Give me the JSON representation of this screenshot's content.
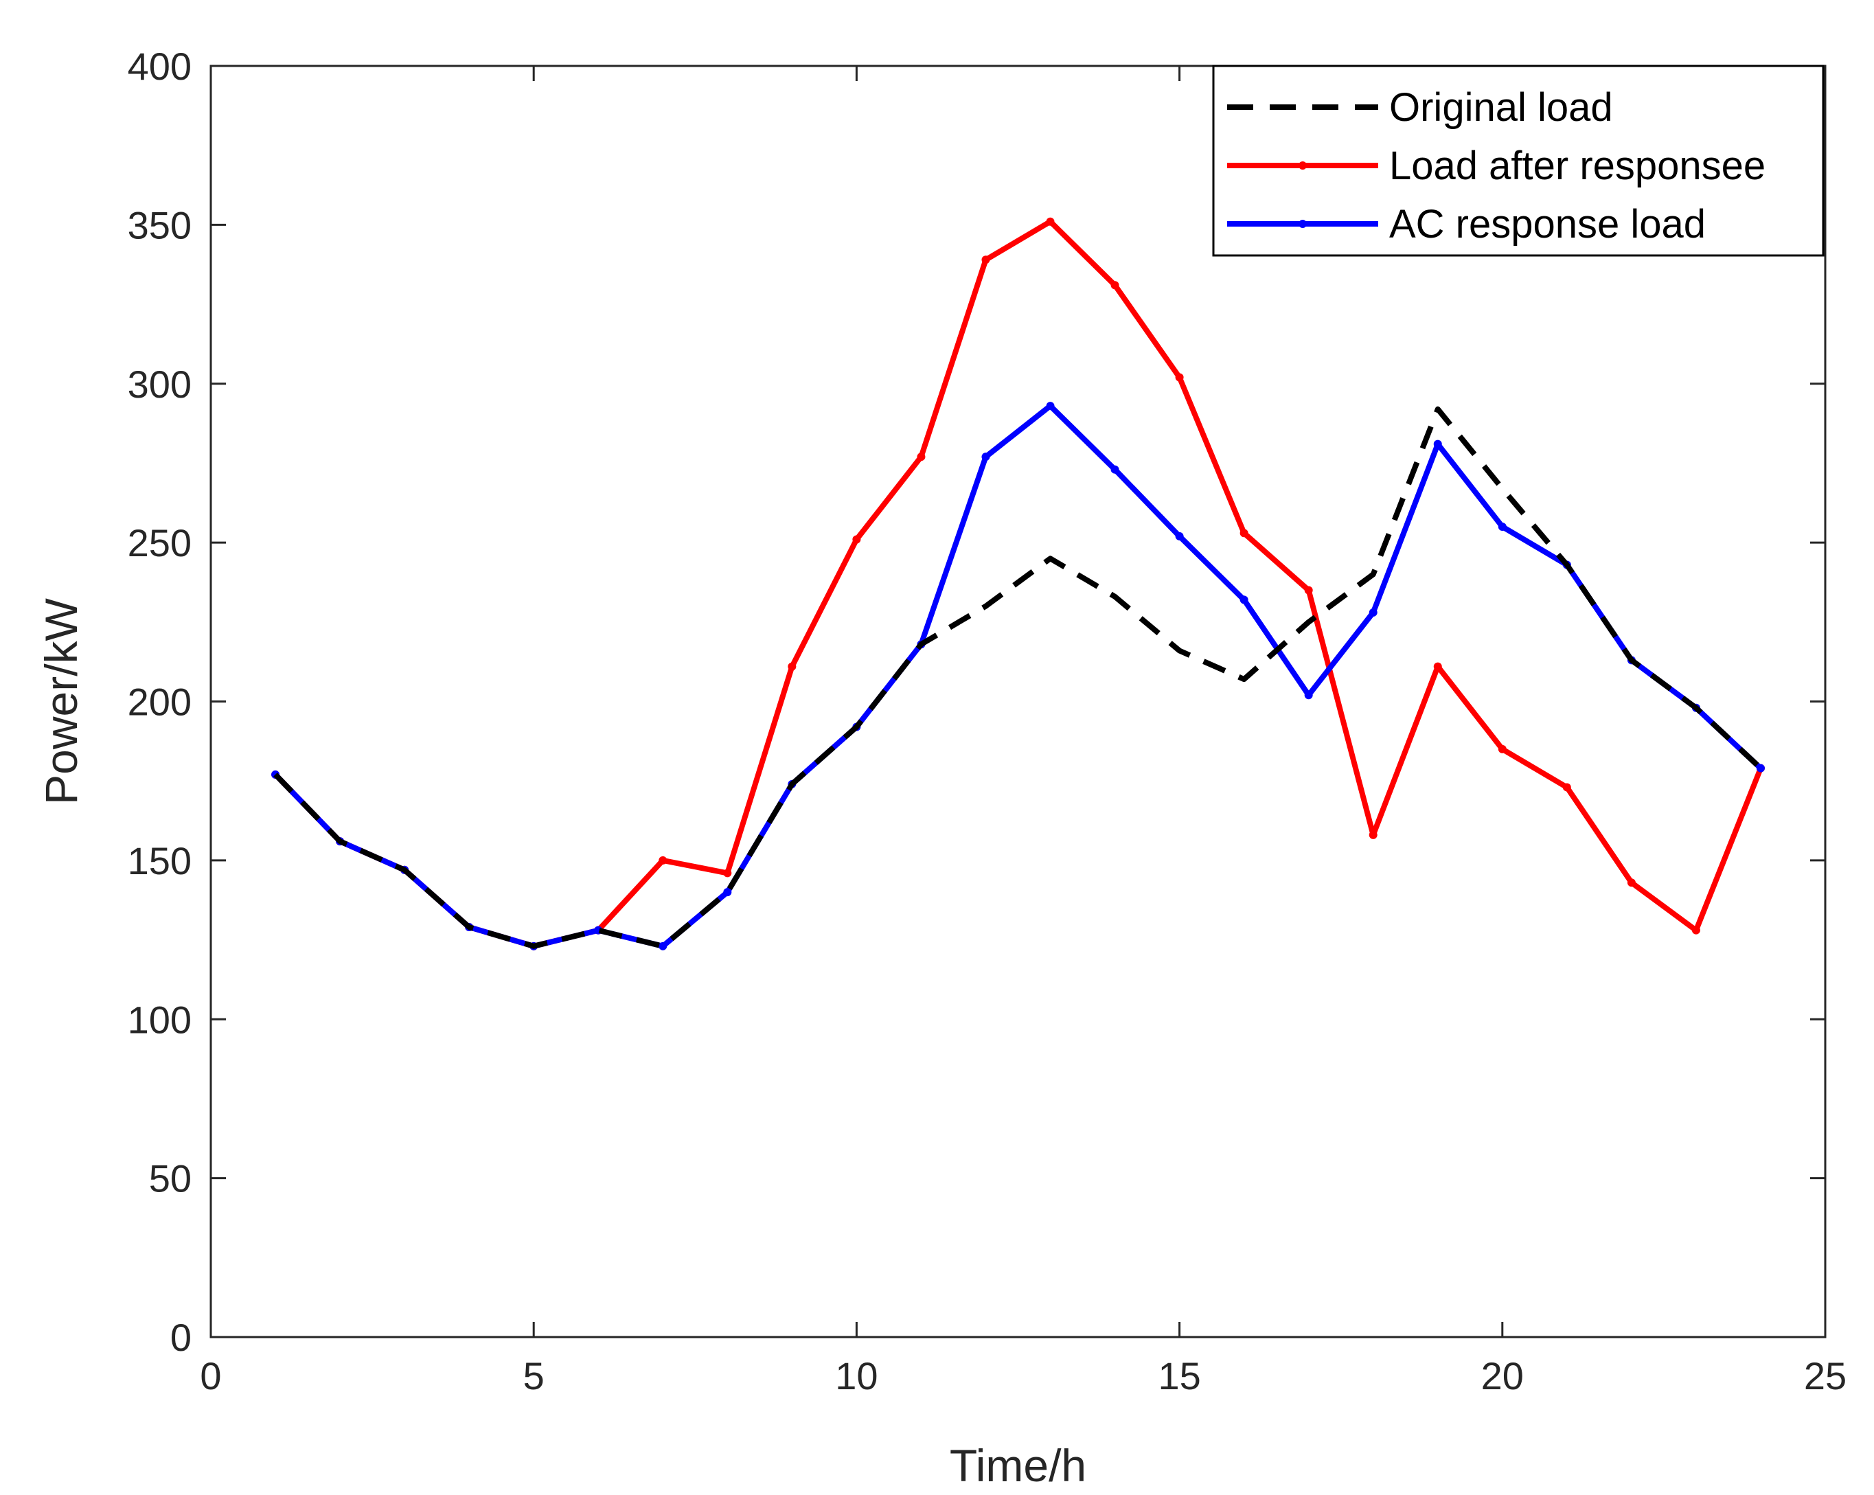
{
  "chart_data": {
    "type": "line",
    "title": "",
    "xlabel": "Time/h",
    "ylabel": "Power/kW",
    "xlim": [
      0,
      25
    ],
    "ylim": [
      0,
      400
    ],
    "xticks": [
      0,
      5,
      10,
      15,
      20,
      25
    ],
    "yticks": [
      0,
      50,
      100,
      150,
      200,
      250,
      300,
      350,
      400
    ],
    "grid": false,
    "legend_position": "top-right",
    "series": [
      {
        "name": "Original load",
        "color": "#000000",
        "style": "dashed",
        "x": [
          1,
          2,
          3,
          4,
          5,
          6,
          7,
          8,
          9,
          10,
          11,
          12,
          13,
          14,
          15,
          16,
          17,
          18,
          19,
          20,
          21,
          22,
          23,
          24
        ],
        "y": [
          177,
          156,
          147,
          129,
          123,
          128,
          123,
          140,
          174,
          192,
          218,
          230,
          245,
          233,
          216,
          207,
          225,
          240,
          292,
          267,
          243,
          213,
          198,
          179
        ]
      },
      {
        "name": "Load after responsee",
        "color": "#ff0000",
        "style": "solid",
        "x": [
          1,
          2,
          3,
          4,
          5,
          6,
          7,
          8,
          9,
          10,
          11,
          12,
          13,
          14,
          15,
          16,
          17,
          18,
          19,
          20,
          21,
          22,
          23,
          24
        ],
        "y": [
          177,
          156,
          147,
          129,
          123,
          128,
          150,
          146,
          211,
          251,
          277,
          339,
          351,
          331,
          302,
          253,
          235,
          158,
          211,
          185,
          173,
          143,
          128,
          179
        ]
      },
      {
        "name": "AC response load",
        "color": "#0000ff",
        "style": "solid",
        "x": [
          1,
          2,
          3,
          4,
          5,
          6,
          7,
          8,
          9,
          10,
          11,
          12,
          13,
          14,
          15,
          16,
          17,
          18,
          19,
          20,
          21,
          22,
          23,
          24
        ],
        "y": [
          177,
          156,
          147,
          129,
          123,
          128,
          123,
          140,
          174,
          192,
          218,
          277,
          293,
          273,
          252,
          232,
          202,
          228,
          281,
          255,
          243,
          213,
          198,
          179
        ]
      }
    ]
  }
}
